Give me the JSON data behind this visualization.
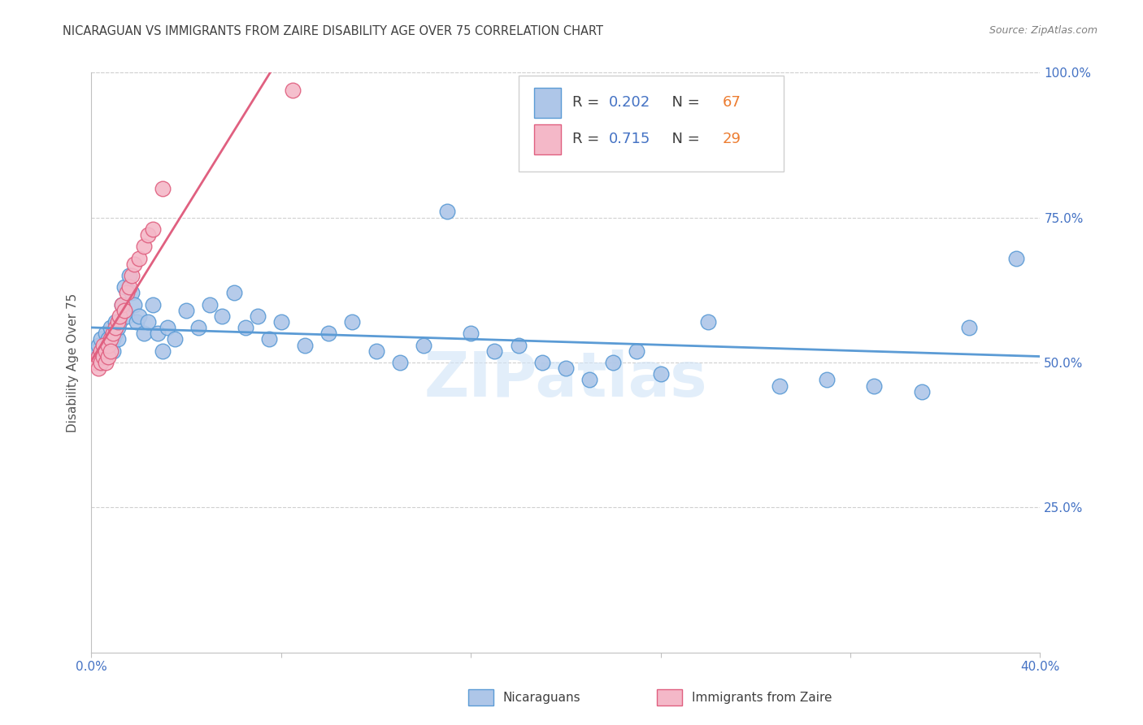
{
  "title": "NICARAGUAN VS IMMIGRANTS FROM ZAIRE DISABILITY AGE OVER 75 CORRELATION CHART",
  "source": "Source: ZipAtlas.com",
  "ylabel": "Disability Age Over 75",
  "xlim": [
    0.0,
    0.4
  ],
  "ylim": [
    0.0,
    1.0
  ],
  "nicaraguan_color": "#aec6e8",
  "nicaraguan_edge": "#5b9bd5",
  "zaire_color": "#f4b8c8",
  "zaire_edge": "#e06080",
  "R_nicaraguan": 0.202,
  "N_nicaraguan": 67,
  "R_zaire": 0.715,
  "N_zaire": 29,
  "legend_R_color": "#4472c4",
  "legend_N_color": "#ed7d31",
  "watermark": "ZIPatlas",
  "watermark_color": "#c8d8f0",
  "title_color": "#404040",
  "source_color": "#808080",
  "axis_label_color": "#4472c4",
  "background_color": "#ffffff",
  "grid_color": "#d0d0d0",
  "nicaraguan_x": [
    0.002,
    0.003,
    0.003,
    0.004,
    0.004,
    0.005,
    0.005,
    0.006,
    0.006,
    0.007,
    0.007,
    0.008,
    0.008,
    0.009,
    0.009,
    0.01,
    0.01,
    0.011,
    0.011,
    0.012,
    0.013,
    0.014,
    0.015,
    0.016,
    0.017,
    0.018,
    0.019,
    0.02,
    0.022,
    0.024,
    0.026,
    0.028,
    0.03,
    0.032,
    0.035,
    0.04,
    0.045,
    0.05,
    0.055,
    0.06,
    0.065,
    0.07,
    0.075,
    0.08,
    0.09,
    0.1,
    0.11,
    0.12,
    0.13,
    0.14,
    0.15,
    0.16,
    0.17,
    0.18,
    0.19,
    0.2,
    0.21,
    0.22,
    0.23,
    0.24,
    0.26,
    0.29,
    0.31,
    0.33,
    0.35,
    0.37,
    0.39
  ],
  "nicaraguan_y": [
    0.52,
    0.51,
    0.53,
    0.5,
    0.54,
    0.52,
    0.51,
    0.53,
    0.55,
    0.52,
    0.54,
    0.53,
    0.56,
    0.52,
    0.54,
    0.55,
    0.57,
    0.54,
    0.56,
    0.57,
    0.6,
    0.63,
    0.58,
    0.65,
    0.62,
    0.6,
    0.57,
    0.58,
    0.55,
    0.57,
    0.6,
    0.55,
    0.52,
    0.56,
    0.54,
    0.59,
    0.56,
    0.6,
    0.58,
    0.62,
    0.56,
    0.58,
    0.54,
    0.57,
    0.53,
    0.55,
    0.57,
    0.52,
    0.5,
    0.53,
    0.76,
    0.55,
    0.52,
    0.53,
    0.5,
    0.49,
    0.47,
    0.5,
    0.52,
    0.48,
    0.57,
    0.46,
    0.47,
    0.46,
    0.45,
    0.56,
    0.68
  ],
  "zaire_x": [
    0.002,
    0.003,
    0.003,
    0.004,
    0.004,
    0.005,
    0.005,
    0.006,
    0.006,
    0.007,
    0.007,
    0.008,
    0.008,
    0.009,
    0.01,
    0.011,
    0.012,
    0.013,
    0.014,
    0.015,
    0.016,
    0.017,
    0.018,
    0.02,
    0.022,
    0.024,
    0.026,
    0.03,
    0.085
  ],
  "zaire_y": [
    0.5,
    0.51,
    0.49,
    0.52,
    0.5,
    0.51,
    0.53,
    0.5,
    0.52,
    0.51,
    0.53,
    0.54,
    0.52,
    0.55,
    0.56,
    0.57,
    0.58,
    0.6,
    0.59,
    0.62,
    0.63,
    0.65,
    0.67,
    0.68,
    0.7,
    0.72,
    0.73,
    0.8,
    0.97
  ]
}
